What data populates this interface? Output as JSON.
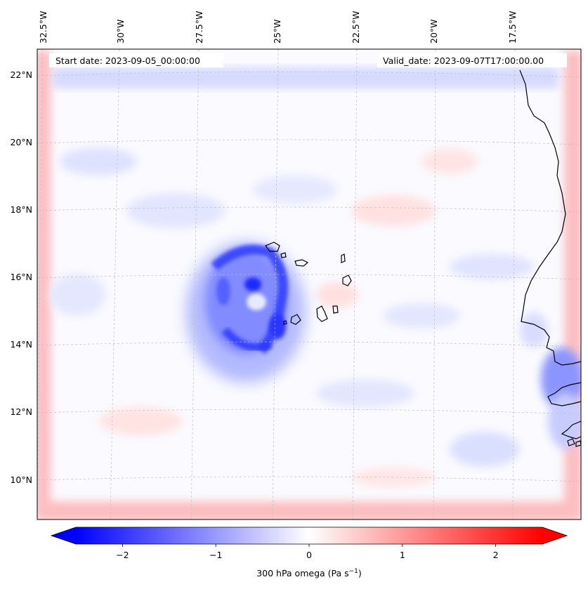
{
  "map": {
    "start_date": "Start date: 2023-09-05_00:00:00",
    "valid_date": "Valid_date: 2023-09-07T17:00:00.00",
    "lon_labels": [
      "32.5°W",
      "30°W",
      "27.5°W",
      "25°W",
      "22.5°W",
      "20°W",
      "17.5°W"
    ],
    "lat_labels": [
      "22°N",
      "20°N",
      "18°N",
      "16°N",
      "14°N",
      "12°N",
      "10°N"
    ],
    "variable": "300 hPa omega",
    "colormap": "bwr",
    "land_outline_color": "#000000",
    "gridline_color": "#bfbfbf"
  },
  "colorbar": {
    "ticks": [
      "−2",
      "−1",
      "0",
      "1",
      "2"
    ],
    "tick_values": [
      -2,
      -1,
      0,
      1,
      2
    ],
    "range": [
      -2.75,
      2.75
    ],
    "label_prefix": "300 hPa omega (Pa s",
    "label_exp": "−1",
    "label_suffix": ")",
    "low_color": "#0000ff",
    "mid_color": "#ffffff",
    "high_color": "#ff0000"
  },
  "chart_data": {
    "type": "heatmap",
    "title": "",
    "field": "300 hPa omega (Pa s−1)",
    "lon_range": [
      -33,
      -15
    ],
    "lat_range": [
      9,
      23
    ],
    "value_range": [
      -2.75,
      2.75
    ],
    "features": [
      {
        "name": "strong ascent (negative omega) cyclone core",
        "lon": -25.5,
        "lat": 15.5,
        "value": -2.0
      },
      {
        "name": "boundary relaxation zone (positive omega)",
        "lon": "domain edges",
        "lat": "domain edges",
        "value": 0.8
      },
      {
        "name": "ascent near West African coast",
        "lon": -16.5,
        "lat": 12.5,
        "value": -1.5
      }
    ]
  }
}
